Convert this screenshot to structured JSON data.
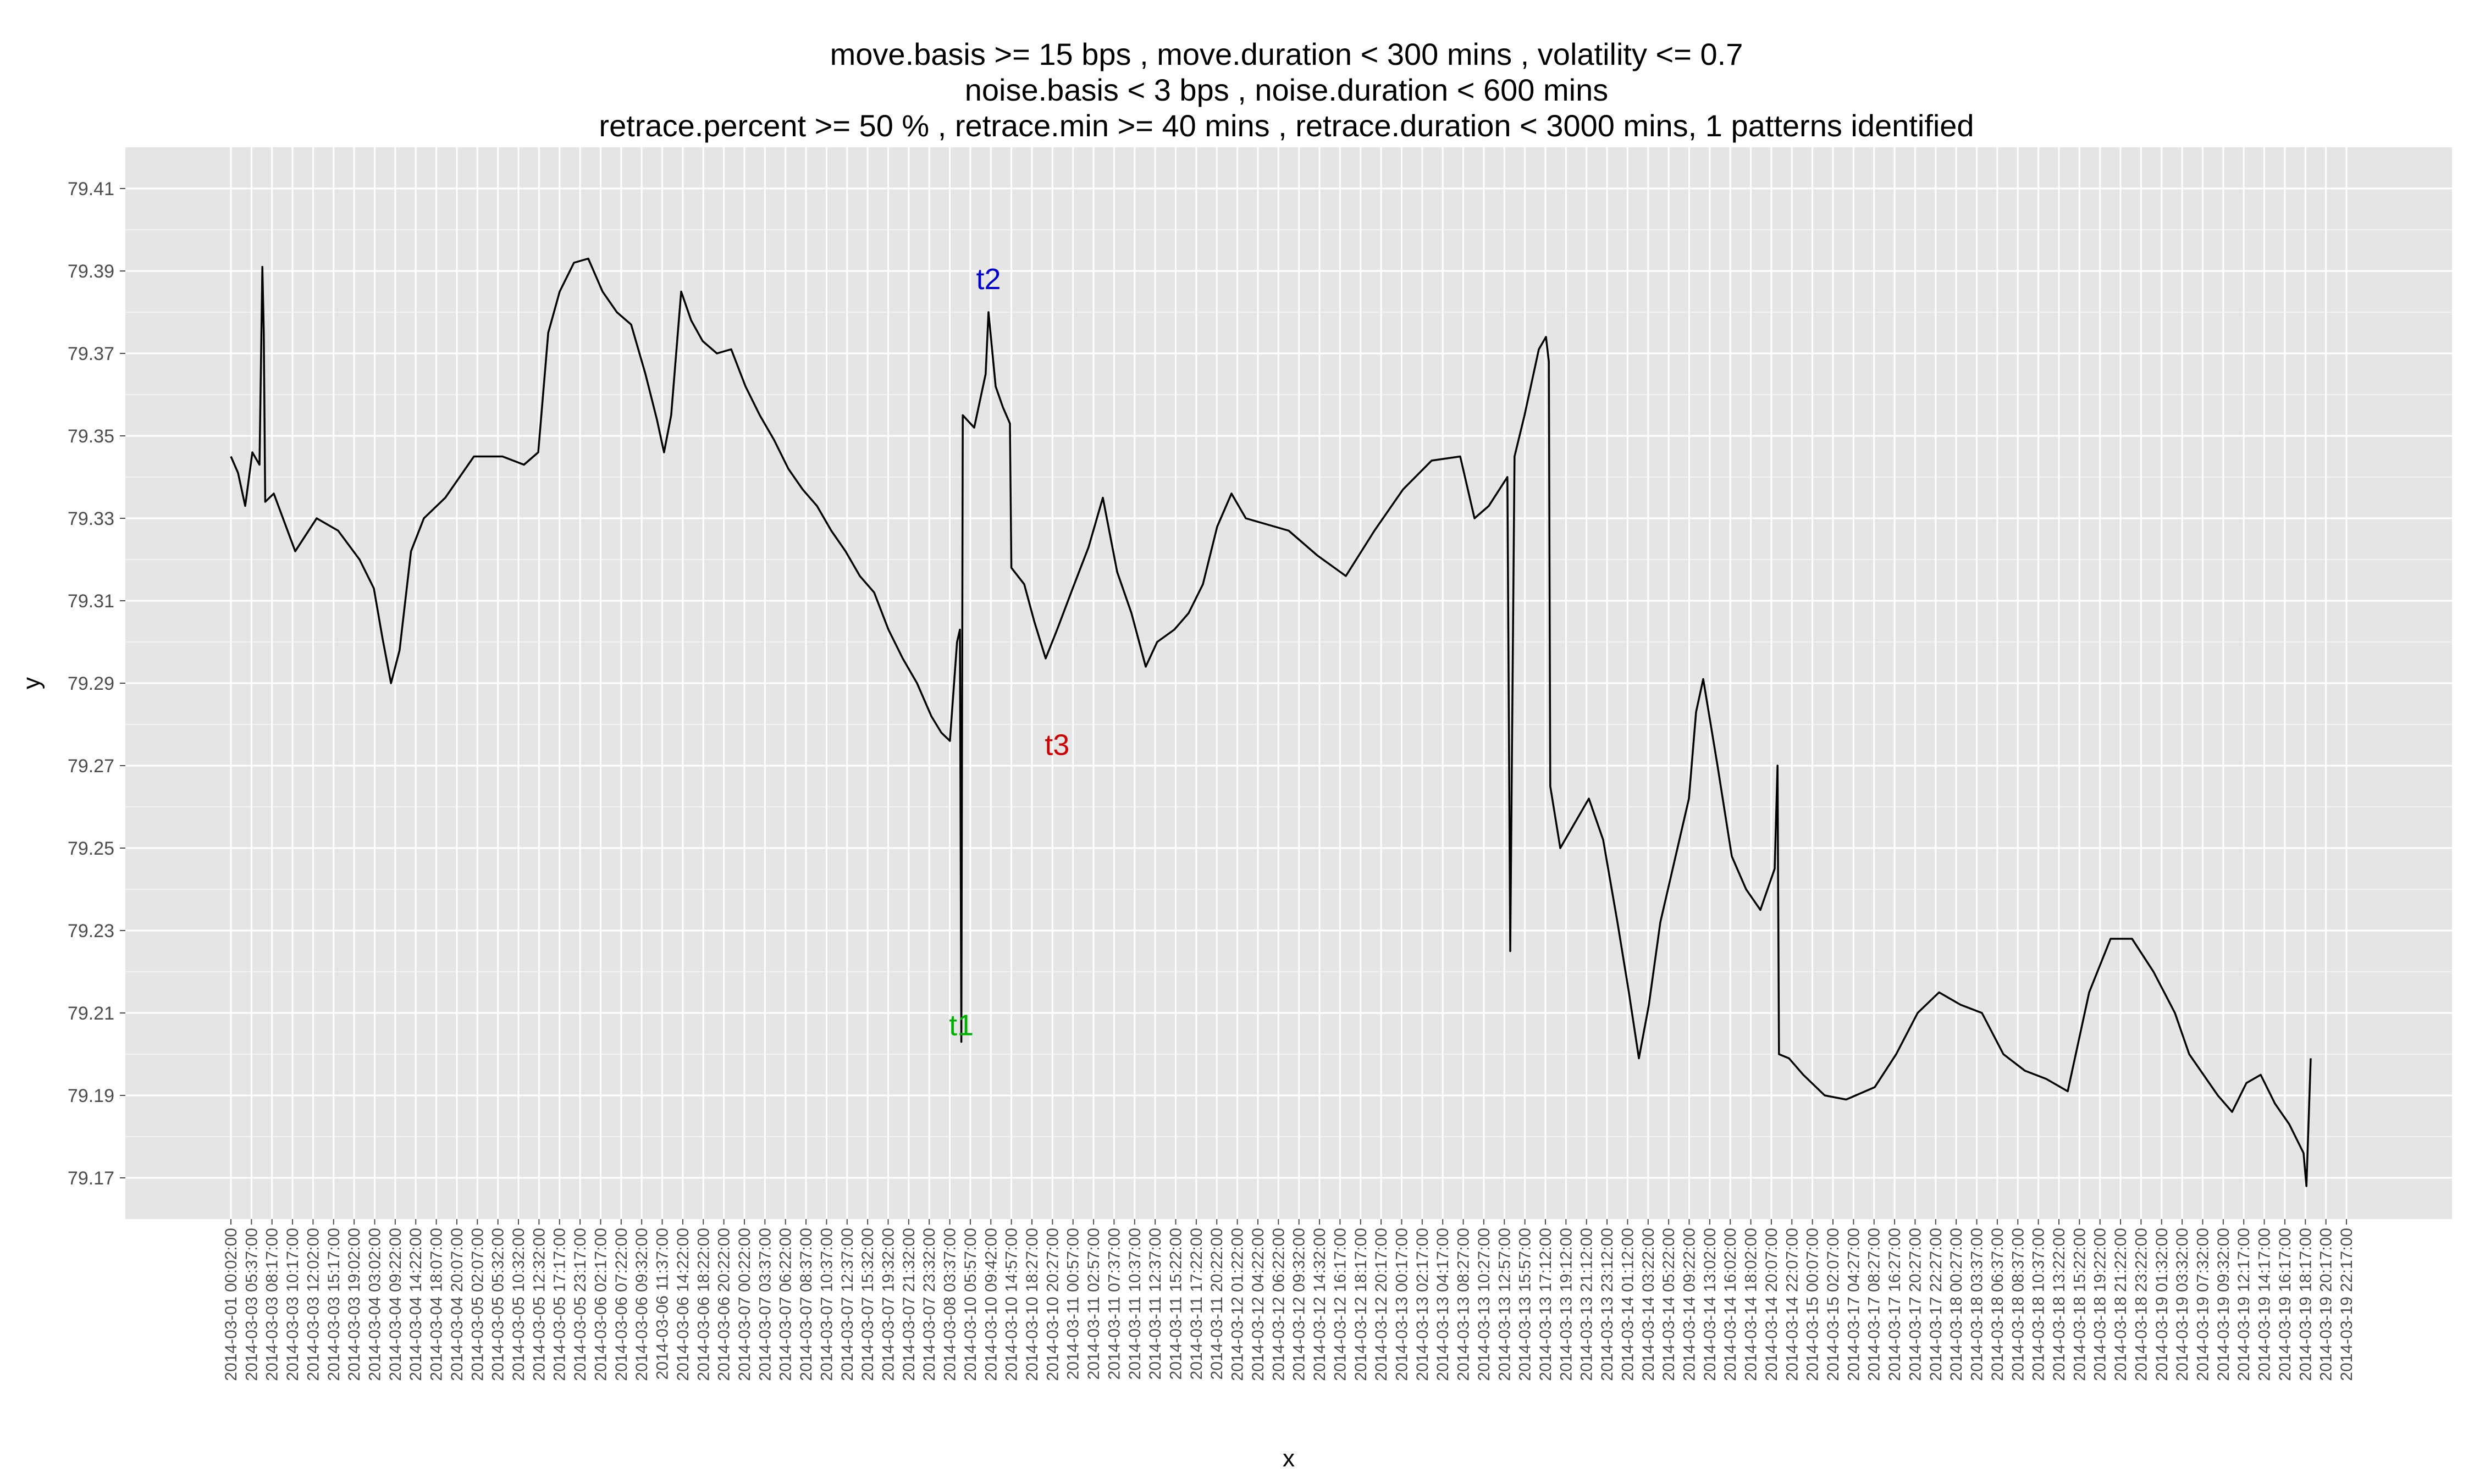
{
  "chart_data": {
    "type": "line",
    "title_lines": [
      "move.basis >= 15 bps , move.duration < 300 mins , volatility <= 0.7",
      "noise.basis < 3 bps , noise.duration < 600 mins",
      "retrace.percent >= 50 % , retrace.min >= 40 mins , retrace.duration < 3000 mins,  1 patterns identified"
    ],
    "xlabel": "x",
    "ylabel": "y",
    "ylim": [
      79.16,
      79.42
    ],
    "y_ticks": [
      "79.17",
      "79.19",
      "79.21",
      "79.23",
      "79.25",
      "79.27",
      "79.29",
      "79.31",
      "79.33",
      "79.35",
      "79.37",
      "79.39",
      "79.41"
    ],
    "x_index_range": [
      0,
      1480
    ],
    "x_tick_labels": [
      "2014-03-01 00:02:00",
      "2014-03-03 05:37:00",
      "2014-03-03 08:17:00",
      "2014-03-03 10:17:00",
      "2014-03-03 12:02:00",
      "2014-03-03 15:17:00",
      "2014-03-03 19:02:00",
      "2014-03-04 03:02:00",
      "2014-03-04 09:22:00",
      "2014-03-04 14:22:00",
      "2014-03-04 18:07:00",
      "2014-03-04 20:07:00",
      "2014-03-05 02:07:00",
      "2014-03-05 05:32:00",
      "2014-03-05 10:32:00",
      "2014-03-05 12:32:00",
      "2014-03-05 17:17:00",
      "2014-03-05 23:17:00",
      "2014-03-06 02:17:00",
      "2014-03-06 07:22:00",
      "2014-03-06 09:32:00",
      "2014-03-06 11:37:00",
      "2014-03-06 14:22:00",
      "2014-03-06 18:22:00",
      "2014-03-06 20:22:00",
      "2014-03-07 00:22:00",
      "2014-03-07 03:37:00",
      "2014-03-07 06:22:00",
      "2014-03-07 08:37:00",
      "2014-03-07 10:37:00",
      "2014-03-07 12:37:00",
      "2014-03-07 15:32:00",
      "2014-03-07 19:32:00",
      "2014-03-07 21:32:00",
      "2014-03-07 23:32:00",
      "2014-03-08 03:37:00",
      "2014-03-10 05:57:00",
      "2014-03-10 09:42:00",
      "2014-03-10 14:57:00",
      "2014-03-10 18:27:00",
      "2014-03-10 20:27:00",
      "2014-03-11 00:57:00",
      "2014-03-11 02:57:00",
      "2014-03-11 07:37:00",
      "2014-03-11 10:37:00",
      "2014-03-11 12:37:00",
      "2014-03-11 15:22:00",
      "2014-03-11 17:22:00",
      "2014-03-11 20:22:00",
      "2014-03-12 01:22:00",
      "2014-03-12 04:22:00",
      "2014-03-12 06:22:00",
      "2014-03-12 09:32:00",
      "2014-03-12 14:32:00",
      "2014-03-12 16:17:00",
      "2014-03-12 18:17:00",
      "2014-03-12 20:17:00",
      "2014-03-13 00:17:00",
      "2014-03-13 02:17:00",
      "2014-03-13 04:17:00",
      "2014-03-13 08:27:00",
      "2014-03-13 10:27:00",
      "2014-03-13 12:57:00",
      "2014-03-13 15:57:00",
      "2014-03-13 17:12:00",
      "2014-03-13 19:12:00",
      "2014-03-13 21:12:00",
      "2014-03-13 23:12:00",
      "2014-03-14 01:12:00",
      "2014-03-14 03:22:00",
      "2014-03-14 05:22:00",
      "2014-03-14 09:22:00",
      "2014-03-14 13:02:00",
      "2014-03-14 16:02:00",
      "2014-03-14 18:02:00",
      "2014-03-14 20:07:00",
      "2014-03-14 22:07:00",
      "2014-03-15 00:07:00",
      "2014-03-15 02:07:00",
      "2014-03-17 04:27:00",
      "2014-03-17 08:27:00",
      "2014-03-17 16:27:00",
      "2014-03-17 20:27:00",
      "2014-03-17 22:27:00",
      "2014-03-18 00:27:00",
      "2014-03-18 03:37:00",
      "2014-03-18 06:37:00",
      "2014-03-18 08:37:00",
      "2014-03-18 10:37:00",
      "2014-03-18 13:22:00",
      "2014-03-18 15:22:00",
      "2014-03-18 19:22:00",
      "2014-03-18 21:22:00",
      "2014-03-18 23:22:00",
      "2014-03-19 01:32:00",
      "2014-03-19 03:32:00",
      "2014-03-19 07:32:00",
      "2014-03-19 09:32:00",
      "2014-03-19 12:17:00",
      "2014-03-19 14:17:00",
      "2014-03-19 16:17:00",
      "2014-03-19 18:17:00",
      "2014-03-19 20:17:00",
      "2014-03-19 22:17:00"
    ],
    "series": [
      {
        "color": "#000000",
        "points": [
          [
            0,
            79.345
          ],
          [
            5,
            79.341
          ],
          [
            10,
            79.333
          ],
          [
            15,
            79.346
          ],
          [
            20,
            79.343
          ],
          [
            22,
            79.391
          ],
          [
            23,
            79.375
          ],
          [
            24,
            79.334
          ],
          [
            30,
            79.336
          ],
          [
            45,
            79.322
          ],
          [
            60,
            79.33
          ],
          [
            75,
            79.327
          ],
          [
            90,
            79.32
          ],
          [
            100,
            79.313
          ],
          [
            106,
            79.301
          ],
          [
            112,
            79.29
          ],
          [
            118,
            79.298
          ],
          [
            126,
            79.322
          ],
          [
            135,
            79.33
          ],
          [
            150,
            79.335
          ],
          [
            170,
            79.345
          ],
          [
            190,
            79.345
          ],
          [
            205,
            79.343
          ],
          [
            215,
            79.346
          ],
          [
            222,
            79.375
          ],
          [
            230,
            79.385
          ],
          [
            240,
            79.392
          ],
          [
            250,
            79.393
          ],
          [
            260,
            79.385
          ],
          [
            270,
            79.38
          ],
          [
            280,
            79.377
          ],
          [
            290,
            79.365
          ],
          [
            298,
            79.354
          ],
          [
            303,
            79.346
          ],
          [
            308,
            79.355
          ],
          [
            315,
            79.385
          ],
          [
            322,
            79.378
          ],
          [
            330,
            79.373
          ],
          [
            340,
            79.37
          ],
          [
            350,
            79.371
          ],
          [
            360,
            79.362
          ],
          [
            370,
            79.355
          ],
          [
            380,
            79.349
          ],
          [
            390,
            79.342
          ],
          [
            400,
            79.337
          ],
          [
            410,
            79.333
          ],
          [
            420,
            79.327
          ],
          [
            430,
            79.322
          ],
          [
            440,
            79.316
          ],
          [
            450,
            79.312
          ],
          [
            460,
            79.303
          ],
          [
            470,
            79.296
          ],
          [
            480,
            79.29
          ],
          [
            490,
            79.282
          ],
          [
            497,
            79.278
          ],
          [
            503,
            79.276
          ],
          [
            508,
            79.3
          ],
          [
            510,
            79.303
          ],
          [
            511,
            79.203
          ],
          [
            512,
            79.355
          ],
          [
            520,
            79.352
          ],
          [
            528,
            79.365
          ],
          [
            530,
            79.38
          ],
          [
            535,
            79.362
          ],
          [
            540,
            79.357
          ],
          [
            545,
            79.353
          ],
          [
            546,
            79.318
          ],
          [
            555,
            79.314
          ],
          [
            562,
            79.305
          ],
          [
            570,
            79.296
          ],
          [
            578,
            79.303
          ],
          [
            590,
            79.314
          ],
          [
            600,
            79.323
          ],
          [
            610,
            79.335
          ],
          [
            620,
            79.317
          ],
          [
            630,
            79.307
          ],
          [
            640,
            79.294
          ],
          [
            648,
            79.3
          ],
          [
            660,
            79.303
          ],
          [
            670,
            79.307
          ],
          [
            680,
            79.314
          ],
          [
            690,
            79.328
          ],
          [
            700,
            79.336
          ],
          [
            710,
            79.33
          ],
          [
            720,
            79.329
          ],
          [
            740,
            79.327
          ],
          [
            760,
            79.321
          ],
          [
            780,
            79.316
          ],
          [
            800,
            79.327
          ],
          [
            820,
            79.337
          ],
          [
            840,
            79.344
          ],
          [
            860,
            79.345
          ],
          [
            870,
            79.33
          ],
          [
            880,
            79.333
          ],
          [
            893,
            79.34
          ],
          [
            895,
            79.225
          ],
          [
            898,
            79.345
          ],
          [
            905,
            79.355
          ],
          [
            915,
            79.371
          ],
          [
            920,
            79.374
          ],
          [
            922,
            79.368
          ],
          [
            923,
            79.265
          ],
          [
            930,
            79.25
          ],
          [
            940,
            79.256
          ],
          [
            950,
            79.262
          ],
          [
            960,
            79.252
          ],
          [
            970,
            79.232
          ],
          [
            978,
            79.215
          ],
          [
            985,
            79.199
          ],
          [
            992,
            79.212
          ],
          [
            1000,
            79.232
          ],
          [
            1010,
            79.247
          ],
          [
            1020,
            79.262
          ],
          [
            1025,
            79.283
          ],
          [
            1030,
            79.291
          ],
          [
            1040,
            79.27
          ],
          [
            1050,
            79.248
          ],
          [
            1060,
            79.24
          ],
          [
            1070,
            79.235
          ],
          [
            1080,
            79.245
          ],
          [
            1082,
            79.27
          ],
          [
            1083,
            79.2
          ],
          [
            1090,
            79.199
          ],
          [
            1100,
            79.195
          ],
          [
            1115,
            79.19
          ],
          [
            1130,
            79.189
          ],
          [
            1150,
            79.192
          ],
          [
            1165,
            79.2
          ],
          [
            1180,
            79.21
          ],
          [
            1195,
            79.215
          ],
          [
            1210,
            79.212
          ],
          [
            1225,
            79.21
          ],
          [
            1240,
            79.2
          ],
          [
            1255,
            79.196
          ],
          [
            1270,
            79.194
          ],
          [
            1285,
            79.191
          ],
          [
            1300,
            79.215
          ],
          [
            1315,
            79.228
          ],
          [
            1330,
            79.228
          ],
          [
            1345,
            79.22
          ],
          [
            1360,
            79.21
          ],
          [
            1370,
            79.2
          ],
          [
            1380,
            79.195
          ],
          [
            1390,
            79.19
          ],
          [
            1400,
            79.186
          ],
          [
            1410,
            79.193
          ],
          [
            1420,
            79.195
          ],
          [
            1430,
            79.188
          ],
          [
            1440,
            79.183
          ],
          [
            1450,
            79.176
          ],
          [
            1452,
            79.168
          ],
          [
            1455,
            79.199
          ]
        ]
      }
    ],
    "annotations": [
      {
        "text": "t1",
        "x": 511,
        "y": 79.207,
        "color": "#00b000"
      },
      {
        "text": "t2",
        "x": 530,
        "y": 79.388,
        "color": "#0000cc"
      },
      {
        "text": "t3",
        "x": 578,
        "y": 79.275,
        "color": "#cc0000"
      }
    ],
    "grid": true
  }
}
